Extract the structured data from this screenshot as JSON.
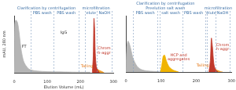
{
  "chart_data": [
    {
      "type": "line",
      "x_label": "Elution Volume (mL)",
      "y_label": "mAU, 280 nm",
      "xlim": [
        0,
        300
      ],
      "xticks": [
        0,
        100,
        200,
        300
      ],
      "ylim": [
        0,
        100
      ],
      "tick_labels": "x",
      "headers": [
        {
          "text": "Clarification by centrifugation",
          "start": 0,
          "end": 195,
          "row": 1
        },
        {
          "text": "microfiltration",
          "start": 195,
          "end": 300,
          "row": 1
        }
      ],
      "phases": [
        {
          "label": "PBS wash",
          "start": 50,
          "end": 120
        },
        {
          "label": "PBS wash",
          "start": 120,
          "end": 195
        },
        {
          "label": "elute",
          "start": 215,
          "end": 250
        },
        {
          "label": "NaOH",
          "start": 250,
          "end": 295
        }
      ],
      "series": [
        {
          "color": "#b5b5b5",
          "x": [
            0,
            2,
            5,
            10,
            15,
            20,
            25,
            30,
            40,
            50,
            70,
            100,
            150,
            200,
            230
          ],
          "values": [
            0,
            85,
            92,
            88,
            70,
            45,
            28,
            18,
            9,
            5,
            3,
            2,
            1.5,
            1,
            1
          ]
        },
        {
          "color": "#c0392b",
          "x": [
            236,
            239,
            241,
            243,
            245,
            248,
            252,
            258
          ],
          "values": [
            0,
            30,
            95,
            80,
            35,
            12,
            5,
            0
          ]
        },
        {
          "color": "#f0a030",
          "x": [
            244,
            250,
            258,
            266,
            272
          ],
          "values": [
            0,
            6,
            4,
            2,
            0
          ]
        }
      ],
      "annotations": [
        {
          "text": [
            "FT"
          ],
          "x": 30,
          "y": 45,
          "color": "#333333"
        },
        {
          "text": [
            "IgG"
          ],
          "x": 150,
          "y": 70,
          "color": "#333333"
        },
        {
          "text": [
            "Tailing"
          ],
          "x": 220,
          "y": 12,
          "color": "#e67e22"
        },
        {
          "text": [
            "Chrom",
            "h-aggr"
          ],
          "x": 272,
          "y": 35,
          "color": "#c0392b"
        }
      ]
    },
    {
      "type": "line",
      "xlim": [
        0,
        300
      ],
      "xticks": [
        0,
        100,
        200,
        300
      ],
      "ylim": [
        0,
        100
      ],
      "tick_labels": "x",
      "headers": [
        {
          "text": "Clarification by centrifugation",
          "start": 0,
          "end": 225,
          "row": 2
        },
        {
          "text": "Preelution salt wash",
          "start": 0,
          "end": 225,
          "row": 1
        },
        {
          "text": "microfiltration",
          "start": 225,
          "end": 300,
          "row": 1
        }
      ],
      "phases": [
        {
          "label": "PBS wash",
          "start": 20,
          "end": 90
        },
        {
          "label": "salt wash",
          "start": 95,
          "end": 160
        },
        {
          "label": "PBS wash",
          "start": 160,
          "end": 225
        },
        {
          "label": "elute",
          "start": 230,
          "end": 255
        },
        {
          "label": "NaOH",
          "start": 255,
          "end": 295
        }
      ],
      "series": [
        {
          "color": "#b5b5b5",
          "x": [
            0,
            3,
            6,
            10,
            15,
            20,
            28,
            35,
            45,
            60,
            80,
            95
          ],
          "values": [
            0,
            45,
            55,
            50,
            38,
            25,
            14,
            8,
            4,
            2,
            1,
            1
          ]
        },
        {
          "color": "#f0b400",
          "x": [
            98,
            102,
            106,
            110,
            115,
            122,
            130,
            140,
            150
          ],
          "values": [
            0,
            12,
            28,
            30,
            20,
            10,
            5,
            2,
            0
          ]
        },
        {
          "color": "#c0392b",
          "x": [
            236,
            240,
            243,
            246,
            250,
            255,
            262
          ],
          "values": [
            0,
            20,
            60,
            45,
            15,
            4,
            0
          ]
        },
        {
          "color": "#f0a030",
          "x": [
            246,
            252,
            260,
            268,
            275
          ],
          "values": [
            0,
            5,
            3,
            1,
            0
          ]
        }
      ],
      "annotations": [
        {
          "text": [
            "HCP and",
            "aggregates"
          ],
          "x": 150,
          "y": 22,
          "color": "#c0392b"
        },
        {
          "text": [
            "Tailing"
          ],
          "x": 218,
          "y": 12,
          "color": "#e67e22"
        },
        {
          "text": [
            "Chrom",
            "h-aggr"
          ],
          "x": 275,
          "y": 40,
          "color": "#c0392b"
        }
      ]
    }
  ]
}
